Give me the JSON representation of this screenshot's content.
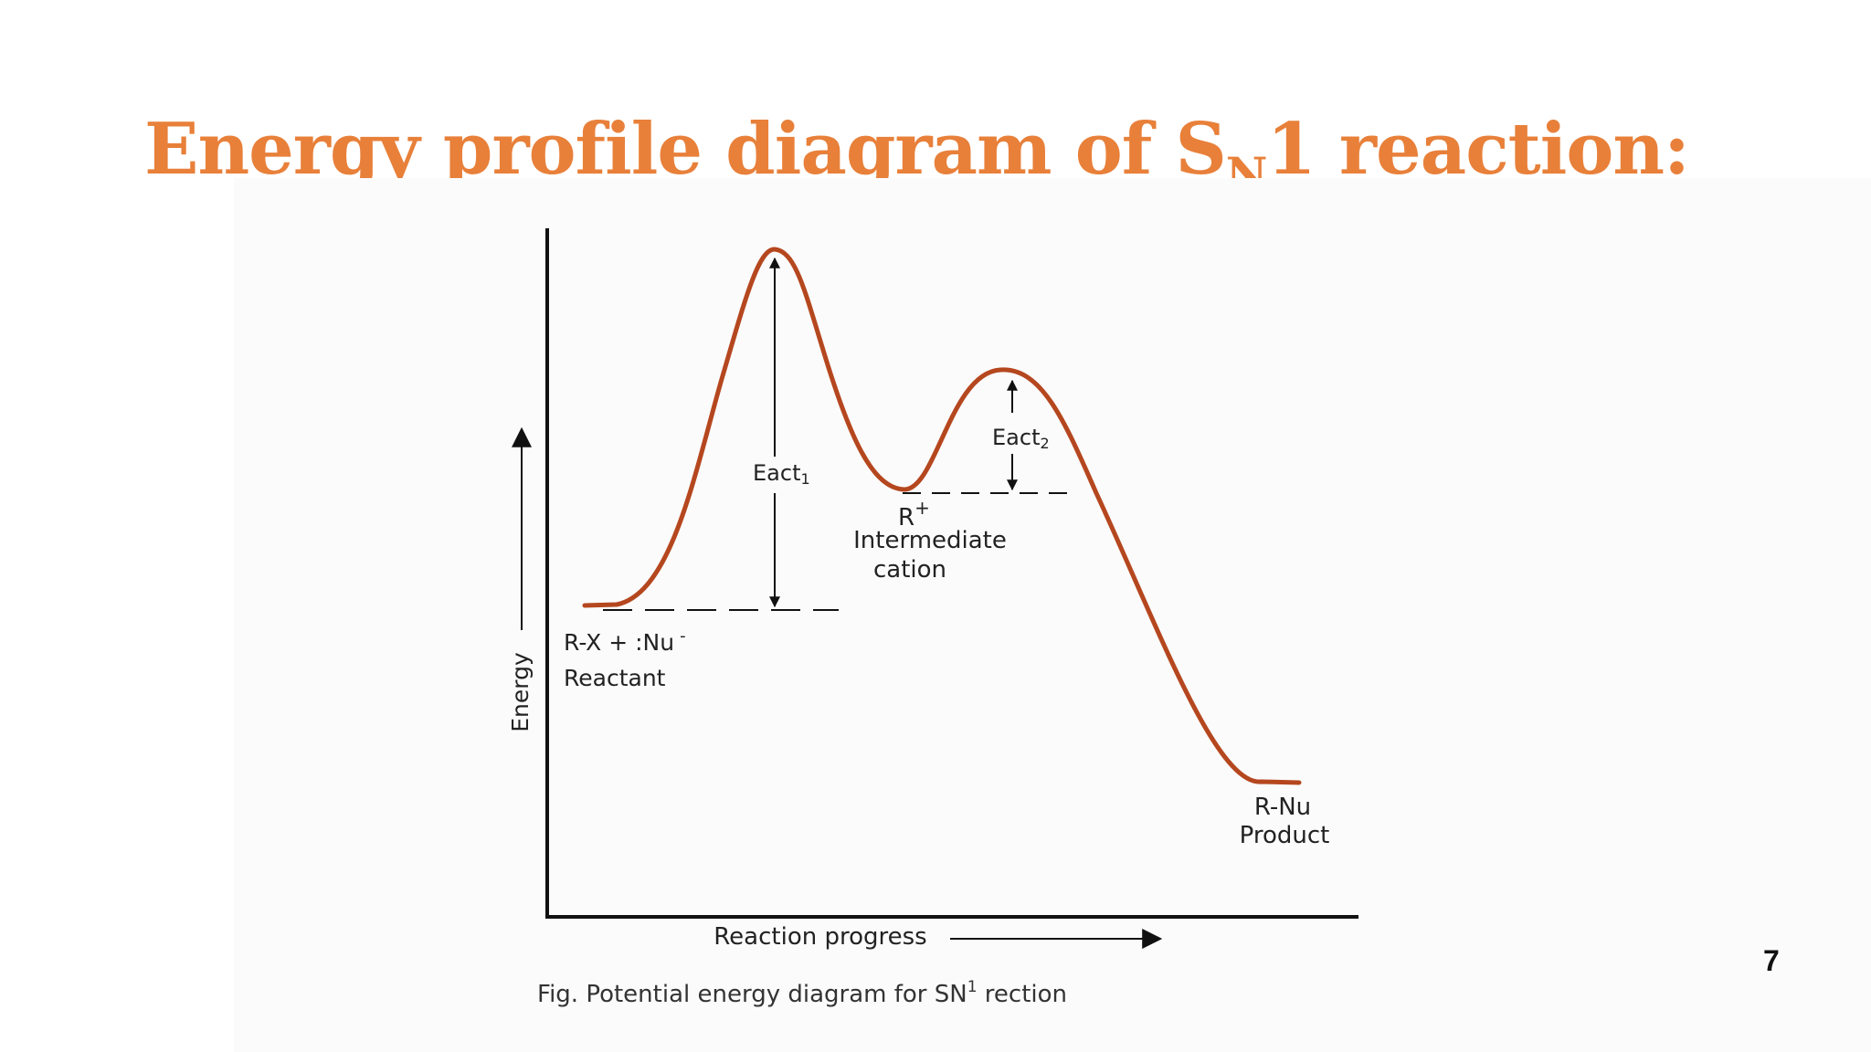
{
  "slide": {
    "title_main": "Energy profile diagram of S",
    "title_sub": "N",
    "title_tail": "1 reaction:",
    "page_number": "7"
  },
  "diagram": {
    "y_axis_label": "Energy",
    "x_axis_label": "Reaction progress",
    "reactant_formula": "R-X + :Nu",
    "reactant_charge": "-",
    "reactant_label": "Reactant",
    "eact1_main": "Eact",
    "eact1_sub": "1",
    "eact2_main": "Eact",
    "eact2_sub": "2",
    "intermediate_species": "R",
    "intermediate_charge": "+",
    "intermediate_line1": "Intermediate",
    "intermediate_line2": "cation",
    "product_formula": "R-Nu",
    "product_label": "Product",
    "caption_main": "Fig. Potential energy diagram for SN",
    "caption_sup": "1",
    "caption_tail": " rection",
    "curve_color": "#b5471f",
    "line_color": "#111111"
  }
}
